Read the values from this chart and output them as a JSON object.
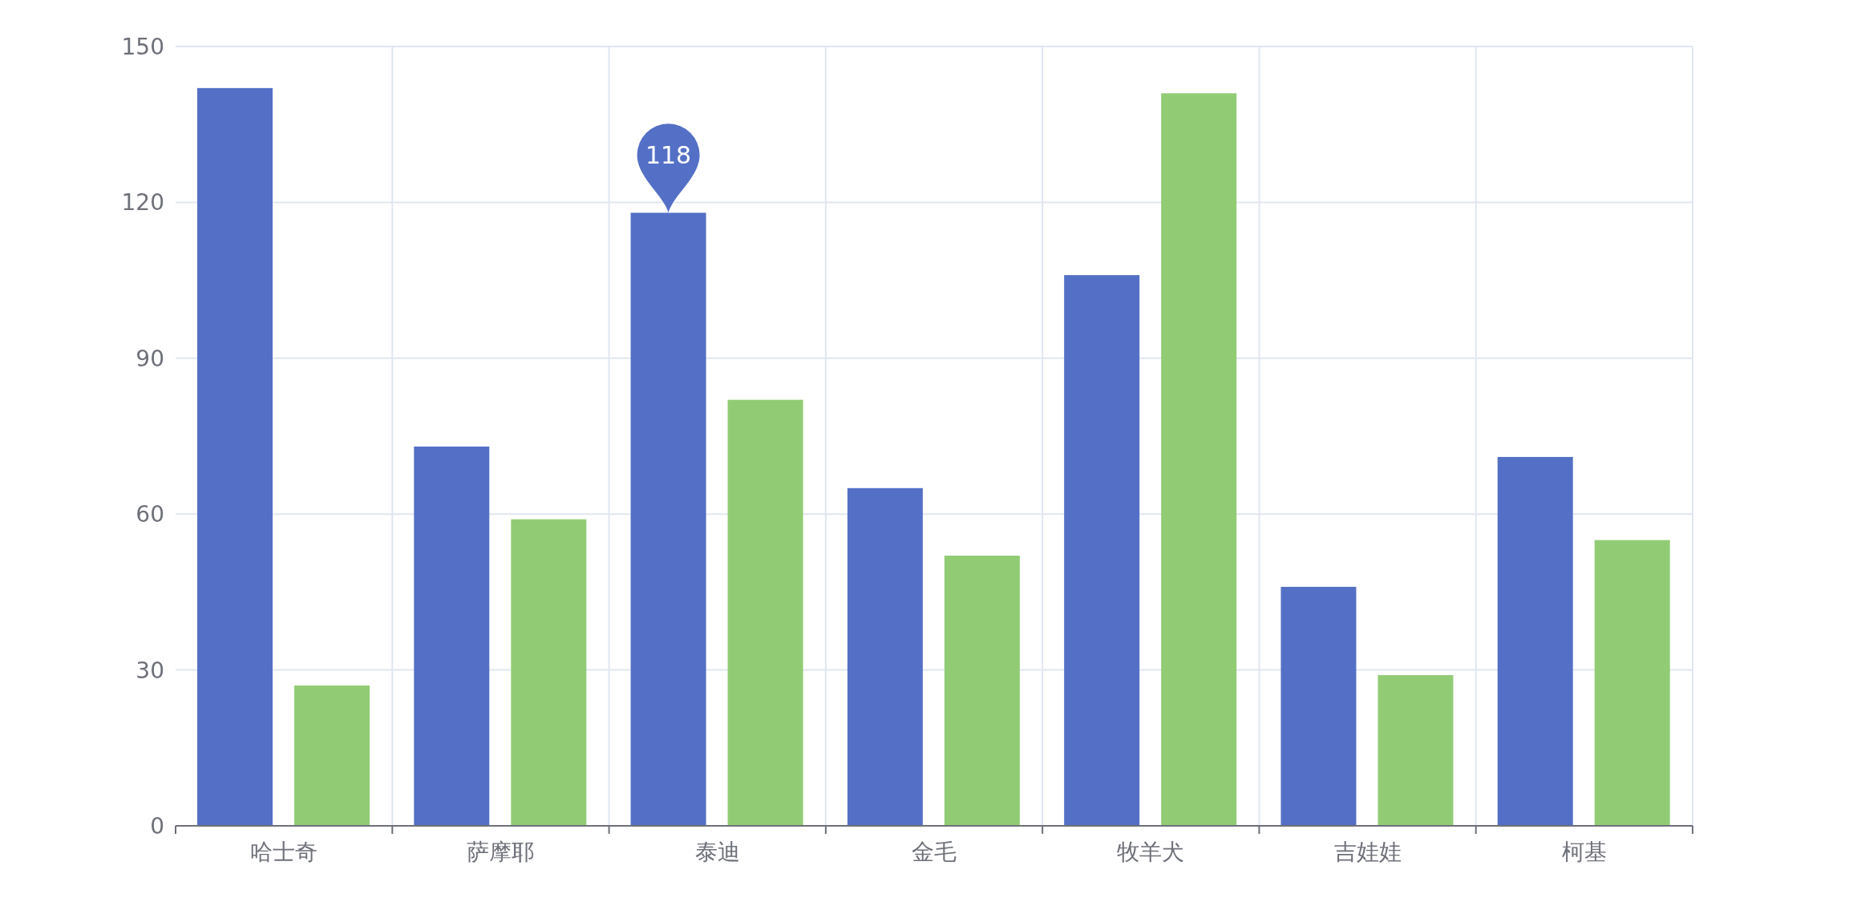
{
  "chart_data": {
    "type": "bar",
    "categories": [
      "哈士奇",
      "萨摩耶",
      "泰迪",
      "金毛",
      "牧羊犬",
      "吉娃娃",
      "柯基"
    ],
    "series": [
      {
        "color": "#5470c6",
        "values": [
          142,
          73,
          118,
          65,
          106,
          46,
          71
        ],
        "value_labels": [
          null,
          null,
          "118",
          null,
          null,
          null,
          null
        ]
      },
      {
        "color": "#91cc75",
        "values": [
          27,
          59,
          82,
          52,
          141,
          29,
          55
        ]
      }
    ],
    "ylim": [
      0,
      150
    ],
    "yticks": [
      0,
      30,
      60,
      90,
      120,
      150
    ],
    "grid": true
  }
}
